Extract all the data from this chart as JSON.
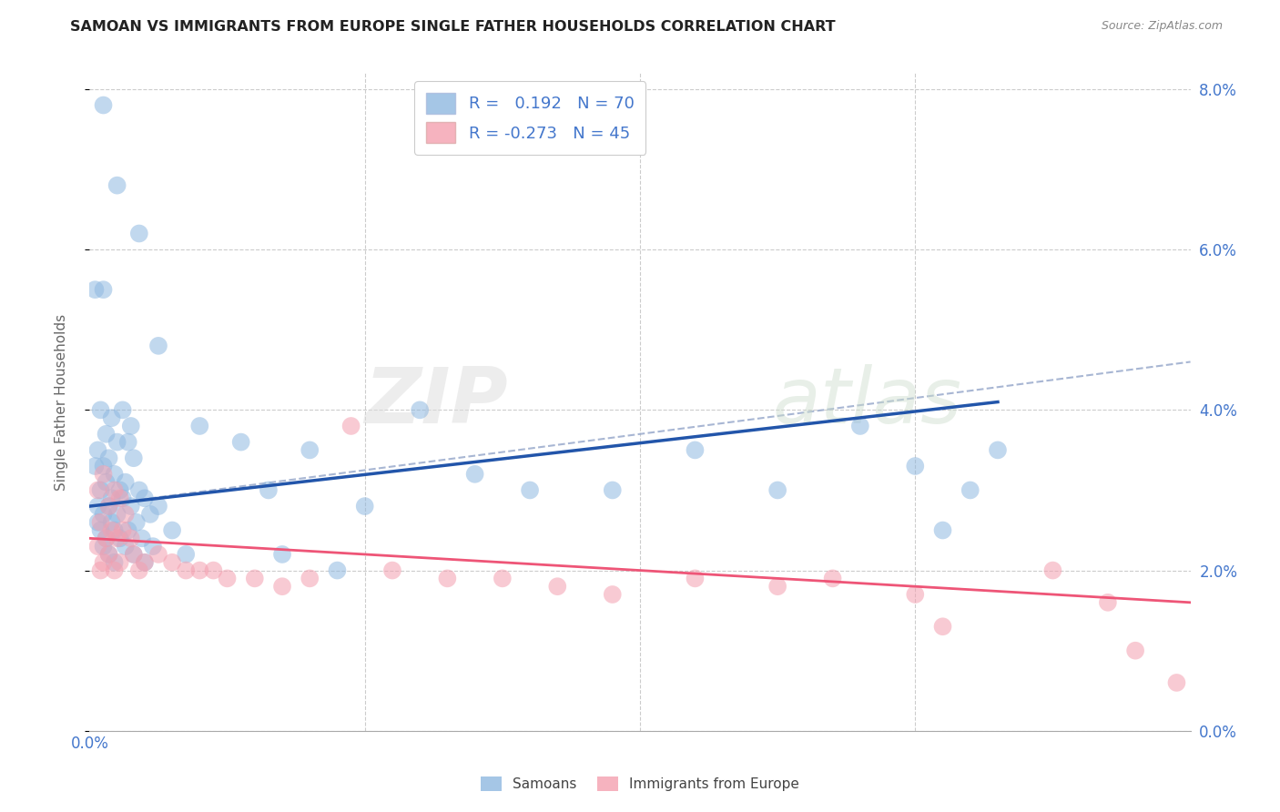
{
  "title": "SAMOAN VS IMMIGRANTS FROM EUROPE SINGLE FATHER HOUSEHOLDS CORRELATION CHART",
  "source": "Source: ZipAtlas.com",
  "ylabel": "Single Father Households",
  "legend1_r": "0.192",
  "legend1_n": "70",
  "legend2_r": "-0.273",
  "legend2_n": "45",
  "legend_label1": "Samoans",
  "legend_label2": "Immigrants from Europe",
  "watermark_zip": "ZIP",
  "watermark_atlas": "atlas",
  "blue_color": "#8FB8E0",
  "pink_color": "#F4A0B0",
  "blue_line_color": "#2255AA",
  "pink_line_color": "#EE5577",
  "blue_dashed_color": "#99AACC",
  "axis_label_color": "#4477CC",
  "grid_color": "#CCCCCC",
  "title_color": "#222222",
  "source_color": "#888888",
  "xlim": [
    0.0,
    0.4
  ],
  "ylim": [
    0.0,
    0.082
  ],
  "ytick_vals": [
    0.0,
    0.02,
    0.04,
    0.06,
    0.08
  ],
  "xtick_vals": [
    0.0,
    0.1,
    0.2,
    0.3,
    0.4
  ],
  "blue_line_x0": 0.0,
  "blue_line_y0": 0.028,
  "blue_line_x1": 0.33,
  "blue_line_y1": 0.041,
  "pink_line_x0": 0.0,
  "pink_line_y0": 0.024,
  "pink_line_x1": 0.4,
  "pink_line_y1": 0.016,
  "dash_line_x0": 0.0,
  "dash_line_y0": 0.028,
  "dash_line_x1": 0.4,
  "dash_line_y1": 0.046,
  "samoan_pts": [
    [
      0.005,
      0.078
    ],
    [
      0.005,
      0.055
    ],
    [
      0.01,
      0.068
    ],
    [
      0.018,
      0.062
    ],
    [
      0.002,
      0.055
    ],
    [
      0.025,
      0.048
    ],
    [
      0.004,
      0.04
    ],
    [
      0.008,
      0.039
    ],
    [
      0.012,
      0.04
    ],
    [
      0.015,
      0.038
    ],
    [
      0.006,
      0.037
    ],
    [
      0.01,
      0.036
    ],
    [
      0.014,
      0.036
    ],
    [
      0.003,
      0.035
    ],
    [
      0.007,
      0.034
    ],
    [
      0.016,
      0.034
    ],
    [
      0.002,
      0.033
    ],
    [
      0.005,
      0.033
    ],
    [
      0.009,
      0.032
    ],
    [
      0.013,
      0.031
    ],
    [
      0.006,
      0.031
    ],
    [
      0.011,
      0.03
    ],
    [
      0.018,
      0.03
    ],
    [
      0.004,
      0.03
    ],
    [
      0.008,
      0.029
    ],
    [
      0.012,
      0.029
    ],
    [
      0.02,
      0.029
    ],
    [
      0.003,
      0.028
    ],
    [
      0.007,
      0.028
    ],
    [
      0.015,
      0.028
    ],
    [
      0.025,
      0.028
    ],
    [
      0.005,
      0.027
    ],
    [
      0.01,
      0.027
    ],
    [
      0.022,
      0.027
    ],
    [
      0.003,
      0.026
    ],
    [
      0.008,
      0.026
    ],
    [
      0.017,
      0.026
    ],
    [
      0.004,
      0.025
    ],
    [
      0.009,
      0.025
    ],
    [
      0.014,
      0.025
    ],
    [
      0.03,
      0.025
    ],
    [
      0.006,
      0.024
    ],
    [
      0.011,
      0.024
    ],
    [
      0.019,
      0.024
    ],
    [
      0.005,
      0.023
    ],
    [
      0.013,
      0.023
    ],
    [
      0.023,
      0.023
    ],
    [
      0.007,
      0.022
    ],
    [
      0.016,
      0.022
    ],
    [
      0.035,
      0.022
    ],
    [
      0.009,
      0.021
    ],
    [
      0.02,
      0.021
    ],
    [
      0.04,
      0.038
    ],
    [
      0.055,
      0.036
    ],
    [
      0.065,
      0.03
    ],
    [
      0.08,
      0.035
    ],
    [
      0.1,
      0.028
    ],
    [
      0.12,
      0.04
    ],
    [
      0.14,
      0.032
    ],
    [
      0.16,
      0.03
    ],
    [
      0.19,
      0.03
    ],
    [
      0.22,
      0.035
    ],
    [
      0.25,
      0.03
    ],
    [
      0.28,
      0.038
    ],
    [
      0.3,
      0.033
    ],
    [
      0.31,
      0.025
    ],
    [
      0.32,
      0.03
    ],
    [
      0.33,
      0.035
    ],
    [
      0.07,
      0.022
    ],
    [
      0.09,
      0.02
    ]
  ],
  "europe_pts": [
    [
      0.003,
      0.03
    ],
    [
      0.005,
      0.032
    ],
    [
      0.007,
      0.028
    ],
    [
      0.009,
      0.03
    ],
    [
      0.011,
      0.029
    ],
    [
      0.013,
      0.027
    ],
    [
      0.004,
      0.026
    ],
    [
      0.008,
      0.025
    ],
    [
      0.012,
      0.025
    ],
    [
      0.006,
      0.024
    ],
    [
      0.01,
      0.024
    ],
    [
      0.015,
      0.024
    ],
    [
      0.003,
      0.023
    ],
    [
      0.007,
      0.022
    ],
    [
      0.016,
      0.022
    ],
    [
      0.005,
      0.021
    ],
    [
      0.011,
      0.021
    ],
    [
      0.02,
      0.021
    ],
    [
      0.004,
      0.02
    ],
    [
      0.009,
      0.02
    ],
    [
      0.018,
      0.02
    ],
    [
      0.025,
      0.022
    ],
    [
      0.03,
      0.021
    ],
    [
      0.035,
      0.02
    ],
    [
      0.04,
      0.02
    ],
    [
      0.045,
      0.02
    ],
    [
      0.05,
      0.019
    ],
    [
      0.06,
      0.019
    ],
    [
      0.07,
      0.018
    ],
    [
      0.08,
      0.019
    ],
    [
      0.095,
      0.038
    ],
    [
      0.11,
      0.02
    ],
    [
      0.13,
      0.019
    ],
    [
      0.15,
      0.019
    ],
    [
      0.17,
      0.018
    ],
    [
      0.19,
      0.017
    ],
    [
      0.22,
      0.019
    ],
    [
      0.25,
      0.018
    ],
    [
      0.27,
      0.019
    ],
    [
      0.3,
      0.017
    ],
    [
      0.35,
      0.02
    ],
    [
      0.37,
      0.016
    ],
    [
      0.38,
      0.01
    ],
    [
      0.395,
      0.006
    ],
    [
      0.31,
      0.013
    ]
  ]
}
